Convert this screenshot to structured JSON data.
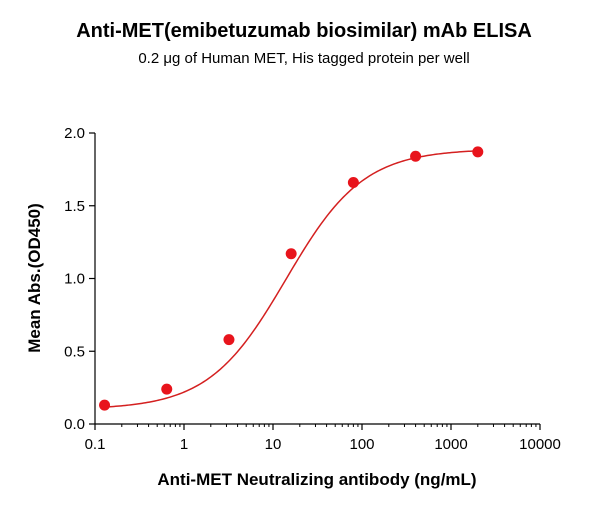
{
  "chart_data": {
    "type": "scatter",
    "title": "Anti-MET(emibetuzumab biosimilar) mAb ELISA",
    "subtitle": "0.2 μg of Human MET, His tagged protein per well",
    "xlabel": "Anti-MET Neutralizing antibody (ng/mL)",
    "ylabel": "Mean Abs.(OD450)",
    "xscale": "log",
    "xlim": [
      0.1,
      10000
    ],
    "ylim": [
      0.0,
      2.0
    ],
    "x_ticks": [
      0.1,
      1,
      10,
      100,
      1000,
      10000
    ],
    "x_tick_labels": [
      "0.1",
      "1",
      "10",
      "100",
      "1000",
      "10000"
    ],
    "y_ticks": [
      0.0,
      0.5,
      1.0,
      1.5,
      2.0
    ],
    "y_tick_labels": [
      "0.0",
      "0.5",
      "1.0",
      "1.5",
      "2.0"
    ],
    "grid": false,
    "series": [
      {
        "x": [
          0.128,
          0.64,
          3.2,
          16,
          80,
          400,
          2000
        ],
        "y": [
          0.13,
          0.24,
          0.58,
          1.17,
          1.66,
          1.84,
          1.87
        ]
      }
    ],
    "fit": {
      "type": "4PL",
      "bottom": 0.1,
      "top": 1.89,
      "ec50": 14,
      "hill": 1.0
    },
    "colors": {
      "points": "#e8141c",
      "curve": "#d42020",
      "axis": "#000000"
    }
  }
}
